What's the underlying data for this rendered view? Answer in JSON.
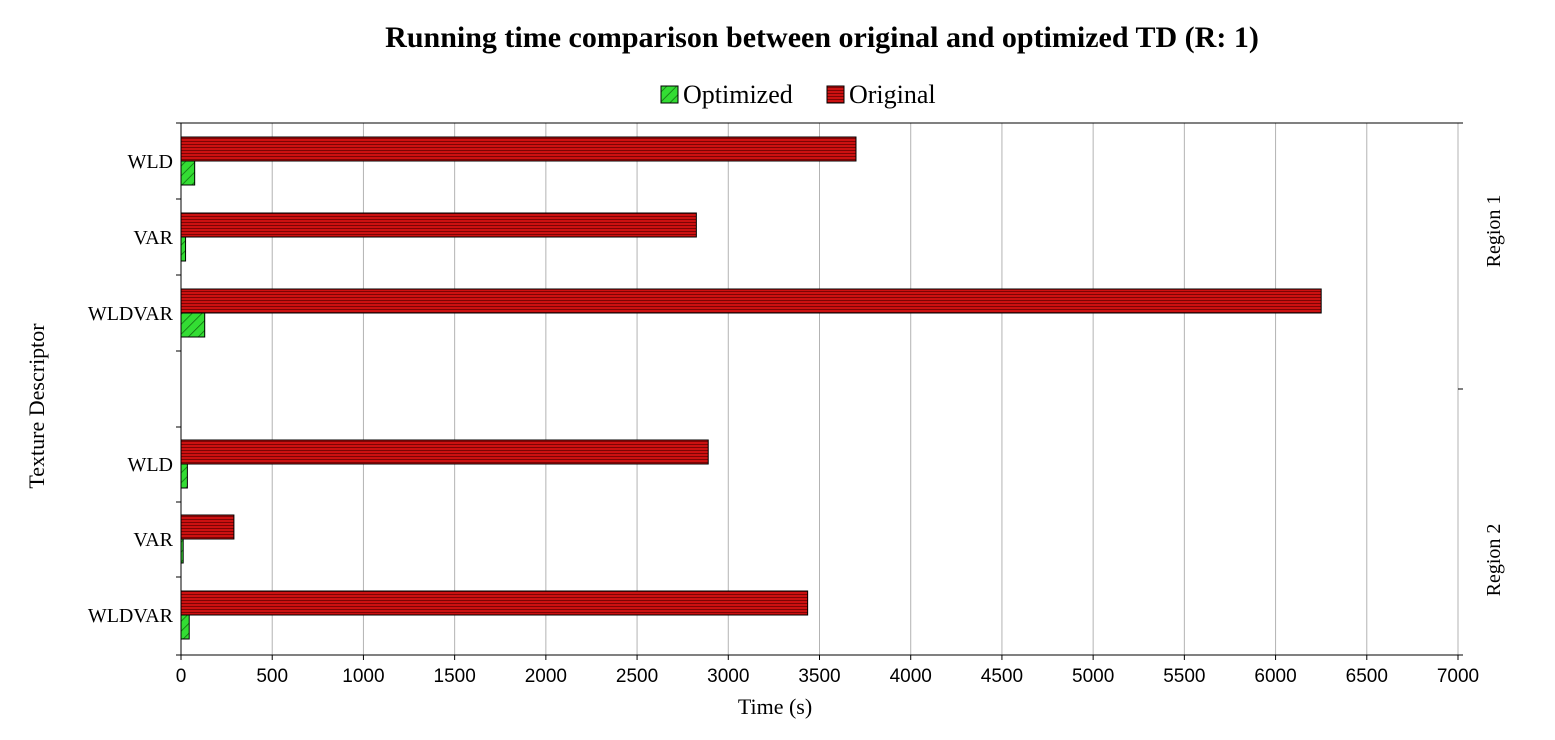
{
  "chart_data": {
    "type": "bar",
    "orientation": "horizontal",
    "title": "Running time comparison between original and optimized TD (R: 1)",
    "xlabel": "Time (s)",
    "ylabel": "Texture Descriptor",
    "xlim": [
      0,
      7000
    ],
    "xticks": [
      0,
      500,
      1000,
      1500,
      2000,
      2500,
      3000,
      3500,
      4000,
      4500,
      5000,
      5500,
      6000,
      6500,
      7000
    ],
    "grid": "vertical",
    "legend_position": "top-center",
    "groups": [
      {
        "name": "Region 1",
        "categories": [
          "WLD",
          "VAR",
          "WLDVAR"
        ]
      },
      {
        "name": "Region 2",
        "categories": [
          "WLD",
          "VAR",
          "WLDVAR"
        ]
      }
    ],
    "series": [
      {
        "name": "Optimized",
        "color": "#33dd33",
        "pattern": "diagonal-hatch",
        "values": [
          75,
          25,
          130,
          35,
          12,
          45
        ]
      },
      {
        "name": "Original",
        "color": "#cc1111",
        "pattern": "horizontal-lines",
        "values": [
          3700,
          2825,
          6250,
          2890,
          290,
          3435
        ]
      }
    ]
  }
}
